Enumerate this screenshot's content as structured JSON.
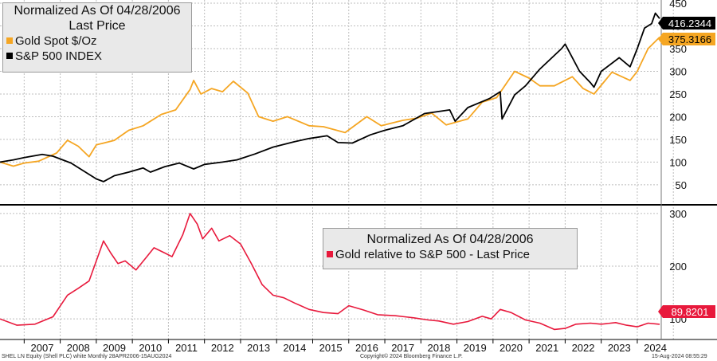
{
  "colors": {
    "gold": "#f5a623",
    "spx": "#000000",
    "ratio": "#e8193c",
    "grid": "#bdbdbd",
    "divider": "#000000"
  },
  "legend_top": {
    "title1": "Normalized As Of 04/28/2006",
    "title2": "Last Price",
    "item_gold": "Gold Spot $/Oz",
    "item_spx": "S&P 500 INDEX"
  },
  "legend_bottom": {
    "title": "Normalized As Of 04/28/2006",
    "item_ratio": "Gold relative to S&P 500 - Last Price"
  },
  "footer": {
    "left": "SHEL LN Equity (Shell PLC) white  Monthly 28APR2006-15AUG2024",
    "center": "Copyright© 2024 Bloomberg Finance L.P.",
    "right": "15-Aug-2024 08:55:29"
  },
  "chart_data": [
    {
      "type": "line",
      "title": "Normalized As Of 04/28/2006",
      "subtitle": "Last Price",
      "ylim": [
        20,
        450
      ],
      "y_ticks": [
        50,
        100,
        150,
        200,
        250,
        300,
        350,
        400,
        450
      ],
      "grid": true,
      "legend": "top-left",
      "last_values": {
        "gold": "375.3166",
        "spx": "416.2344"
      },
      "series": [
        {
          "name": "Gold Spot $/Oz",
          "color": "#f5a623",
          "points": [
            [
              2006.33,
              100
            ],
            [
              2006.7,
              91
            ],
            [
              2007.0,
              98
            ],
            [
              2007.4,
              102
            ],
            [
              2007.9,
              120
            ],
            [
              2008.2,
              148
            ],
            [
              2008.5,
              135
            ],
            [
              2008.8,
              112
            ],
            [
              2009.0,
              138
            ],
            [
              2009.5,
              148
            ],
            [
              2009.9,
              170
            ],
            [
              2010.3,
              180
            ],
            [
              2010.8,
              205
            ],
            [
              2011.2,
              215
            ],
            [
              2011.6,
              260
            ],
            [
              2011.7,
              280
            ],
            [
              2011.9,
              250
            ],
            [
              2012.2,
              262
            ],
            [
              2012.5,
              255
            ],
            [
              2012.8,
              278
            ],
            [
              2013.2,
              252
            ],
            [
              2013.5,
              200
            ],
            [
              2013.9,
              190
            ],
            [
              2014.3,
              200
            ],
            [
              2014.9,
              180
            ],
            [
              2015.3,
              178
            ],
            [
              2015.9,
              165
            ],
            [
              2016.5,
              200
            ],
            [
              2016.9,
              180
            ],
            [
              2017.5,
              192
            ],
            [
              2017.9,
              197
            ],
            [
              2018.3,
              208
            ],
            [
              2018.7,
              182
            ],
            [
              2019.3,
              195
            ],
            [
              2019.7,
              232
            ],
            [
              2020.1,
              242
            ],
            [
              2020.6,
              300
            ],
            [
              2021.0,
              285
            ],
            [
              2021.3,
              268
            ],
            [
              2021.7,
              268
            ],
            [
              2022.2,
              288
            ],
            [
              2022.5,
              262
            ],
            [
              2022.8,
              250
            ],
            [
              2023.3,
              298
            ],
            [
              2023.8,
              280
            ],
            [
              2024.0,
              300
            ],
            [
              2024.3,
              350
            ],
            [
              2024.62,
              375.3
            ]
          ]
        },
        {
          "name": "S&P 500 INDEX",
          "color": "#000000",
          "points": [
            [
              2006.33,
              100
            ],
            [
              2006.7,
              105
            ],
            [
              2007.0,
              110
            ],
            [
              2007.5,
              117
            ],
            [
              2007.8,
              113
            ],
            [
              2008.3,
              98
            ],
            [
              2008.7,
              78
            ],
            [
              2009.0,
              63
            ],
            [
              2009.2,
              57
            ],
            [
              2009.5,
              70
            ],
            [
              2009.9,
              78
            ],
            [
              2010.3,
              87
            ],
            [
              2010.5,
              78
            ],
            [
              2010.9,
              90
            ],
            [
              2011.3,
              98
            ],
            [
              2011.7,
              85
            ],
            [
              2012.0,
              95
            ],
            [
              2012.5,
              100
            ],
            [
              2012.9,
              105
            ],
            [
              2013.4,
              118
            ],
            [
              2013.9,
              133
            ],
            [
              2014.5,
              145
            ],
            [
              2014.9,
              152
            ],
            [
              2015.4,
              158
            ],
            [
              2015.7,
              143
            ],
            [
              2016.1,
              142
            ],
            [
              2016.6,
              160
            ],
            [
              2017.0,
              170
            ],
            [
              2017.5,
              180
            ],
            [
              2017.9,
              198
            ],
            [
              2018.1,
              207
            ],
            [
              2018.8,
              215
            ],
            [
              2018.95,
              190
            ],
            [
              2019.3,
              220
            ],
            [
              2019.9,
              240
            ],
            [
              2020.2,
              255
            ],
            [
              2020.25,
              195
            ],
            [
              2020.6,
              248
            ],
            [
              2020.9,
              268
            ],
            [
              2021.3,
              305
            ],
            [
              2021.9,
              350
            ],
            [
              2022.0,
              360
            ],
            [
              2022.4,
              300
            ],
            [
              2022.7,
              275
            ],
            [
              2022.8,
              265
            ],
            [
              2023.0,
              300
            ],
            [
              2023.5,
              330
            ],
            [
              2023.8,
              310
            ],
            [
              2024.0,
              350
            ],
            [
              2024.2,
              395
            ],
            [
              2024.4,
              405
            ],
            [
              2024.5,
              428
            ],
            [
              2024.62,
              416.2
            ]
          ]
        }
      ]
    },
    {
      "type": "line",
      "title": "Normalized As Of 04/28/2006",
      "ylim": [
        70,
        312
      ],
      "y_ticks": [
        100,
        200,
        300
      ],
      "grid": true,
      "legend": "center-right",
      "last_values": {
        "ratio": "89.8201"
      },
      "x_ticks": [
        "2007",
        "2008",
        "2009",
        "2010",
        "2011",
        "2012",
        "2013",
        "2014",
        "2015",
        "2016",
        "2017",
        "2018",
        "2019",
        "2020",
        "2021",
        "2022",
        "2023",
        "2024"
      ],
      "series": [
        {
          "name": "Gold relative to S&P 500 - Last Price",
          "color": "#e8193c",
          "points": [
            [
              2006.33,
              100
            ],
            [
              2006.8,
              88
            ],
            [
              2007.3,
              90
            ],
            [
              2007.8,
              104
            ],
            [
              2008.2,
              145
            ],
            [
              2008.5,
              158
            ],
            [
              2008.8,
              172
            ],
            [
              2009.2,
              248
            ],
            [
              2009.4,
              225
            ],
            [
              2009.6,
              205
            ],
            [
              2009.8,
              210
            ],
            [
              2010.1,
              193
            ],
            [
              2010.4,
              218
            ],
            [
              2010.6,
              235
            ],
            [
              2010.9,
              225
            ],
            [
              2011.1,
              218
            ],
            [
              2011.4,
              260
            ],
            [
              2011.6,
              300
            ],
            [
              2011.8,
              280
            ],
            [
              2011.95,
              252
            ],
            [
              2012.2,
              272
            ],
            [
              2012.4,
              248
            ],
            [
              2012.7,
              258
            ],
            [
              2013.0,
              242
            ],
            [
              2013.3,
              205
            ],
            [
              2013.6,
              165
            ],
            [
              2013.9,
              145
            ],
            [
              2014.2,
              140
            ],
            [
              2014.5,
              130
            ],
            [
              2014.9,
              118
            ],
            [
              2015.3,
              112
            ],
            [
              2015.7,
              110
            ],
            [
              2016.0,
              125
            ],
            [
              2016.4,
              117
            ],
            [
              2016.8,
              108
            ],
            [
              2017.3,
              106
            ],
            [
              2017.8,
              102
            ],
            [
              2018.2,
              98
            ],
            [
              2018.5,
              96
            ],
            [
              2018.9,
              90
            ],
            [
              2019.3,
              95
            ],
            [
              2019.7,
              105
            ],
            [
              2019.95,
              100
            ],
            [
              2020.2,
              118
            ],
            [
              2020.5,
              112
            ],
            [
              2020.9,
              98
            ],
            [
              2021.3,
              92
            ],
            [
              2021.7,
              80
            ],
            [
              2022.0,
              82
            ],
            [
              2022.3,
              90
            ],
            [
              2022.7,
              92
            ],
            [
              2023.0,
              90
            ],
            [
              2023.4,
              93
            ],
            [
              2023.7,
              88
            ],
            [
              2024.0,
              85
            ],
            [
              2024.3,
              92
            ],
            [
              2024.62,
              89.82
            ]
          ]
        }
      ]
    }
  ]
}
